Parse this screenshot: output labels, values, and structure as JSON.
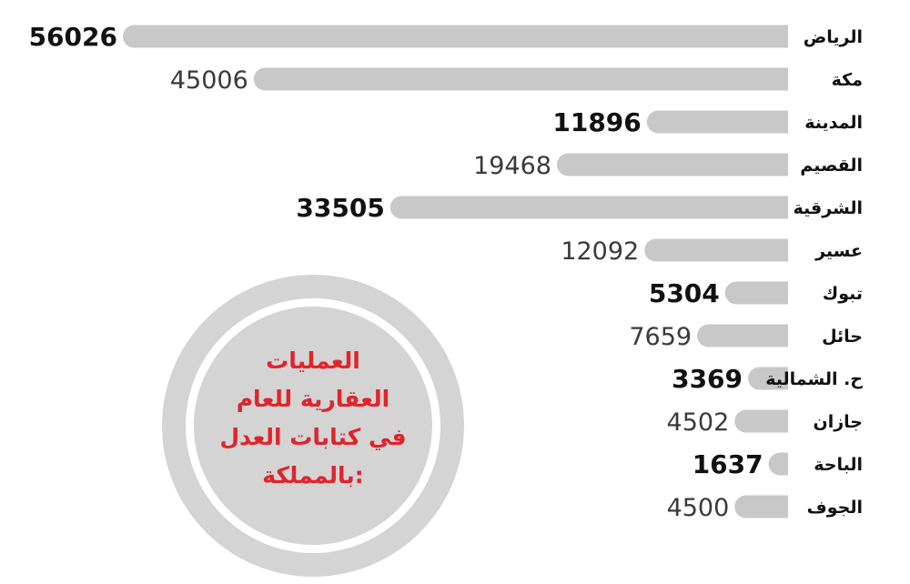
{
  "accent_color": "#e0242b",
  "bar_color": "#c8c8c8",
  "chart_data": {
    "type": "bar",
    "orientation": "horizontal",
    "grid": false,
    "categories": [
      "الرياض",
      "مكة",
      "المدينة",
      "القصيم",
      "الشرقية",
      "عسير",
      "تبوك",
      "حائل",
      "ح. الشمالية",
      "جازان",
      "الباحة",
      "الجوف"
    ],
    "values": [
      56026,
      45006,
      11896,
      19468,
      33505,
      12092,
      5304,
      7659,
      3369,
      4502,
      1637,
      4500
    ],
    "value_labels": [
      "56026",
      "45006",
      "11896",
      "19468",
      "33505",
      "12092",
      "5304",
      "7659",
      "3369",
      "4502",
      "1637",
      "4500"
    ],
    "xlim": [
      0,
      56026
    ]
  },
  "note": {
    "lines": [
      "العمليات",
      "العقارية للعام",
      "في كتابات العدل",
      "بالمملكة:"
    ]
  }
}
